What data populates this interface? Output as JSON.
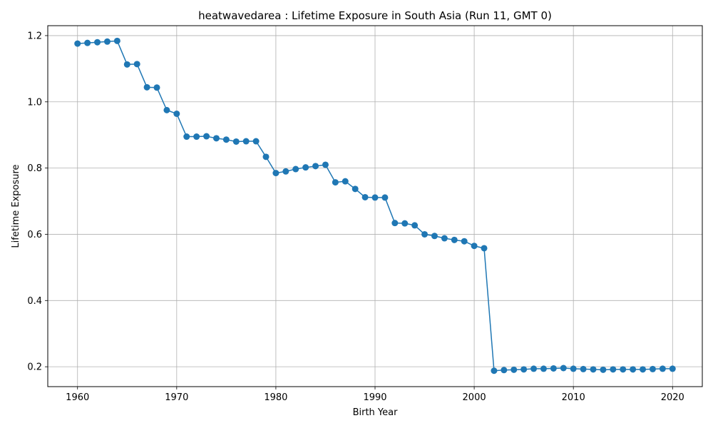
{
  "chart_data": {
    "type": "line",
    "title": "heatwavedarea : Lifetime Exposure in South Asia (Run 11, GMT 0)",
    "xlabel": "Birth Year",
    "ylabel": "Lifetime Exposure",
    "xlim": [
      1957,
      2023
    ],
    "ylim": [
      0.14,
      1.23
    ],
    "xticks": [
      1960,
      1970,
      1980,
      1990,
      2000,
      2010,
      2020
    ],
    "yticks": [
      0.2,
      0.4,
      0.6,
      0.8,
      1.0,
      1.2
    ],
    "ytick_labels": [
      "0.2",
      "0.4",
      "0.6",
      "0.8",
      "1.0",
      "1.2"
    ],
    "grid": true,
    "color": "#1f77b4",
    "marker": "circle",
    "series": [
      {
        "x": [
          1960,
          1961,
          1962,
          1963,
          1964,
          1965,
          1966,
          1967,
          1968,
          1969,
          1970,
          1971,
          1972,
          1973,
          1974,
          1975,
          1976,
          1977,
          1978,
          1979,
          1980,
          1981,
          1982,
          1983,
          1984,
          1985,
          1986,
          1987,
          1988,
          1989,
          1990,
          1991,
          1992,
          1993,
          1994,
          1995,
          1996,
          1997,
          1998,
          1999,
          2000,
          2001,
          2002,
          2003,
          2004,
          2005,
          2006,
          2007,
          2008,
          2009,
          2010,
          2011,
          2012,
          2013,
          2014,
          2015,
          2016,
          2017,
          2018,
          2019,
          2020
        ],
        "y": [
          1.176,
          1.178,
          1.18,
          1.182,
          1.184,
          1.113,
          1.114,
          1.044,
          1.043,
          0.975,
          0.964,
          0.895,
          0.895,
          0.896,
          0.89,
          0.886,
          0.88,
          0.881,
          0.881,
          0.834,
          0.785,
          0.79,
          0.797,
          0.802,
          0.806,
          0.81,
          0.757,
          0.76,
          0.737,
          0.712,
          0.711,
          0.711,
          0.634,
          0.633,
          0.627,
          0.6,
          0.595,
          0.588,
          0.583,
          0.579,
          0.565,
          0.558,
          0.188,
          0.19,
          0.191,
          0.192,
          0.194,
          0.194,
          0.195,
          0.196,
          0.194,
          0.193,
          0.192,
          0.191,
          0.192,
          0.192,
          0.192,
          0.192,
          0.193,
          0.194,
          0.194
        ]
      }
    ]
  }
}
